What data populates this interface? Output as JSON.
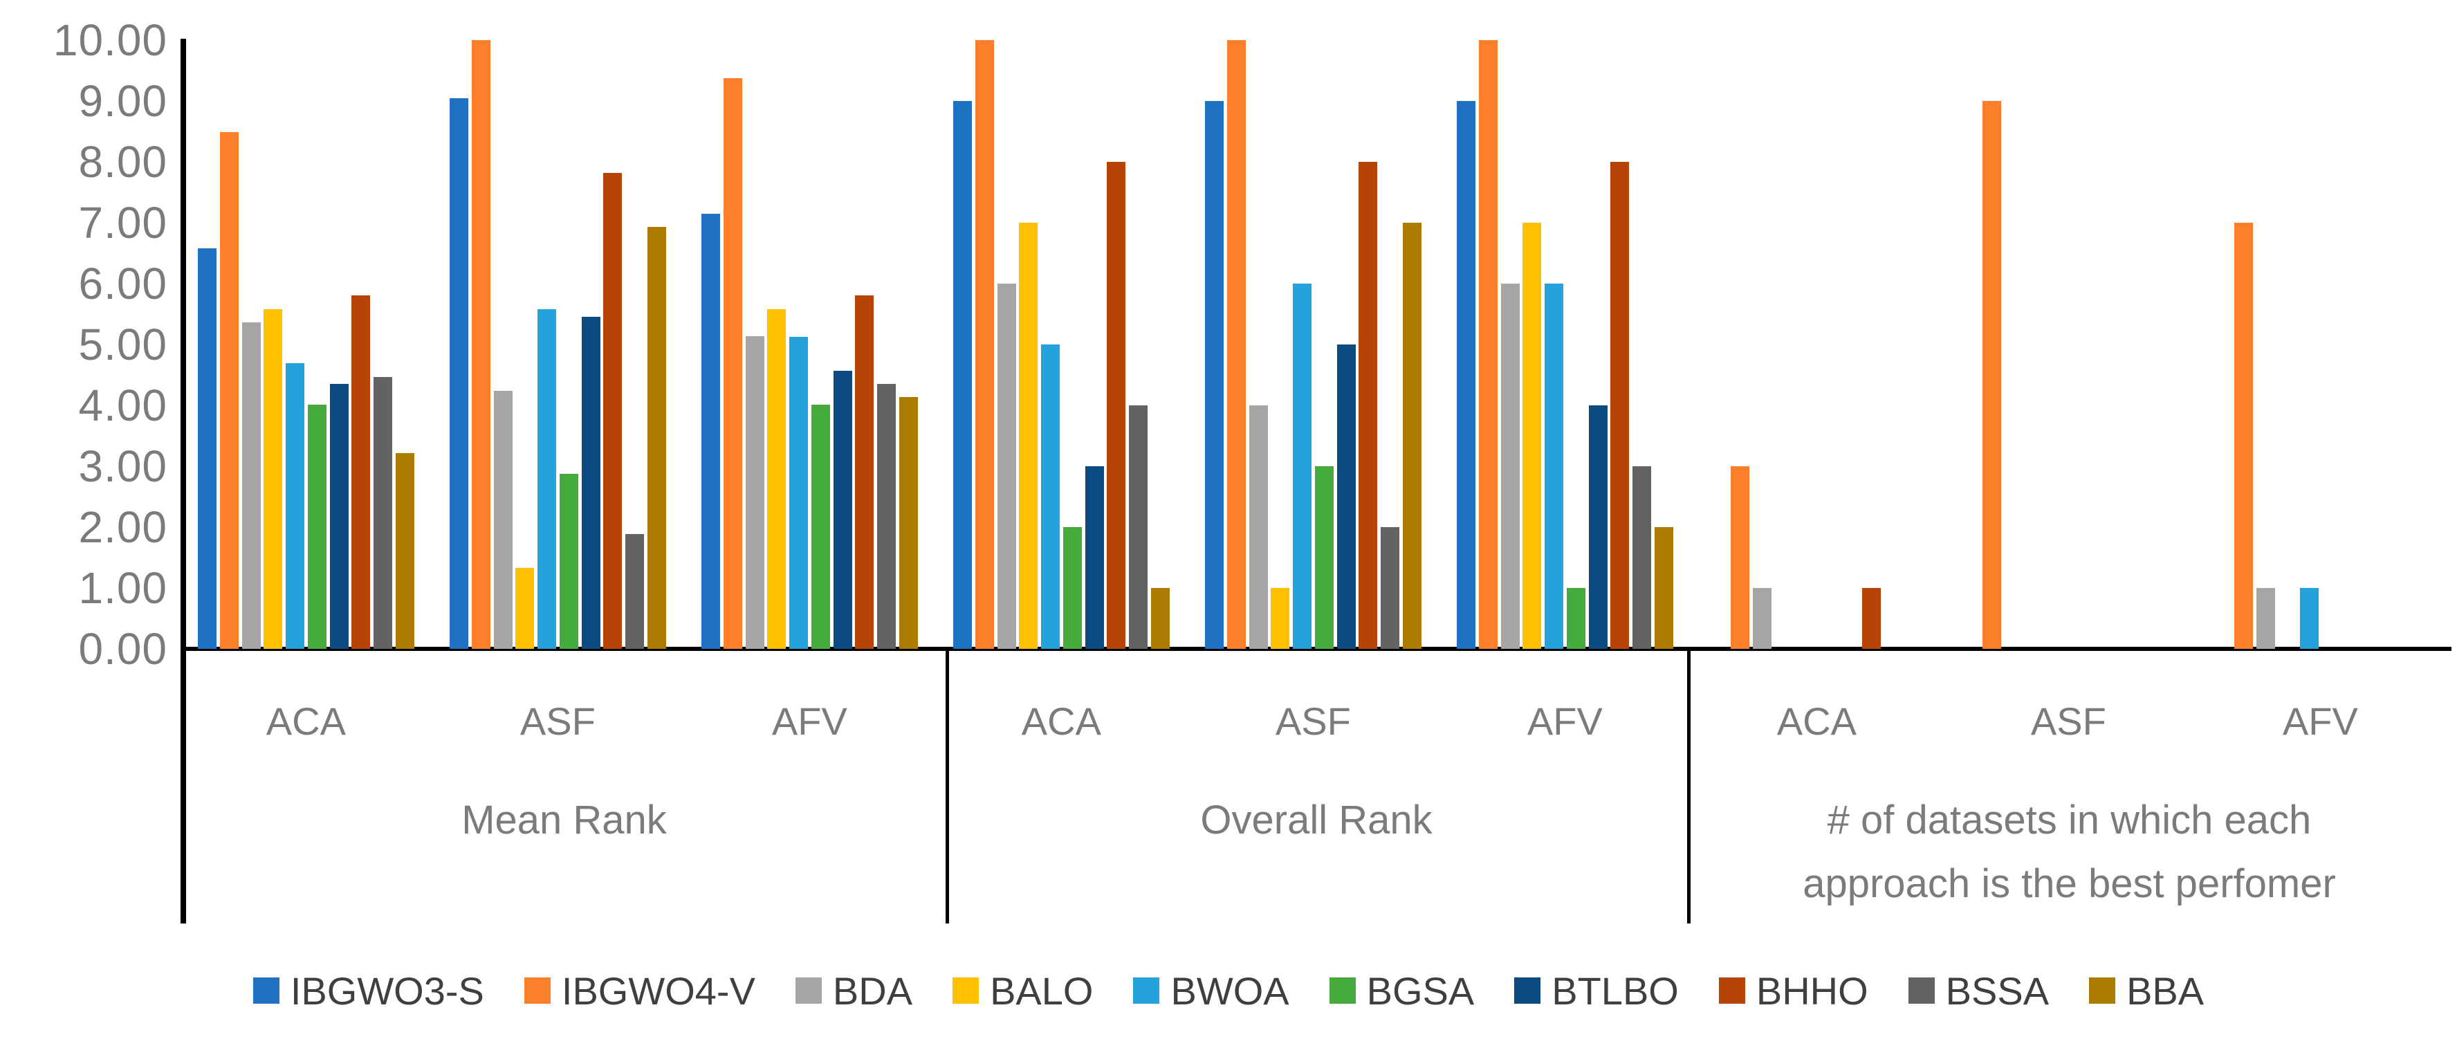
{
  "chart_data": {
    "type": "bar",
    "title": "",
    "ylabel": "",
    "xlabel": "",
    "ylim": [
      0,
      10
    ],
    "ytick_step": 1,
    "ytick_labels": [
      "0.00",
      "1.00",
      "2.00",
      "3.00",
      "4.00",
      "5.00",
      "6.00",
      "7.00",
      "8.00",
      "9.00",
      "10.00"
    ],
    "grid": false,
    "legend_position": "bottom",
    "groups": [
      {
        "caption_lines": [
          "Mean Rank"
        ],
        "subcategories": [
          "ACA",
          "ASF",
          "AFV"
        ]
      },
      {
        "caption_lines": [
          "Overall Rank"
        ],
        "subcategories": [
          "ACA",
          "ASF",
          "AFV"
        ]
      },
      {
        "caption_lines": [
          "# of datasets in which each",
          "approach is the best perfomer"
        ],
        "subcategories": [
          "ACA",
          "ASF",
          "AFV"
        ]
      }
    ],
    "cluster_order": [
      "Mean Rank | ACA",
      "Mean Rank | ASF",
      "Mean Rank | AFV",
      "Overall Rank | ACA",
      "Overall Rank | ASF",
      "Overall Rank | AFV",
      "# of datasets | ACA",
      "# of datasets | ASF",
      "# of datasets | AFV"
    ],
    "series": [
      {
        "name": "IBGWO3-S",
        "color": "#1f72c2",
        "values": [
          6.58,
          9.04,
          7.15,
          9,
          9,
          9,
          0,
          0,
          0
        ]
      },
      {
        "name": "IBGWO4-V",
        "color": "#fd7e2b",
        "values": [
          8.49,
          10.0,
          9.38,
          10,
          10,
          10,
          3,
          9,
          7
        ]
      },
      {
        "name": "BDA",
        "color": "#a6a6a6",
        "values": [
          5.36,
          4.24,
          5.14,
          6,
          4,
          6,
          1,
          0,
          1
        ]
      },
      {
        "name": "BALO",
        "color": "#ffc001",
        "values": [
          5.58,
          1.33,
          5.58,
          7,
          1,
          7,
          0,
          0,
          0
        ]
      },
      {
        "name": "BWOA",
        "color": "#23a2dc",
        "values": [
          4.69,
          5.58,
          5.13,
          5,
          6,
          6,
          0,
          0,
          1
        ]
      },
      {
        "name": "BGSA",
        "color": "#44ab3c",
        "values": [
          4.01,
          2.88,
          4.01,
          2,
          3,
          1,
          0,
          0,
          0
        ]
      },
      {
        "name": "BTLBO",
        "color": "#0b4b81",
        "values": [
          4.35,
          5.46,
          4.57,
          3,
          5,
          4,
          0,
          0,
          0
        ]
      },
      {
        "name": "BHHO",
        "color": "#b54406",
        "values": [
          5.81,
          7.82,
          5.81,
          8,
          8,
          8,
          1,
          0,
          0
        ]
      },
      {
        "name": "BSSA",
        "color": "#636363",
        "values": [
          4.47,
          1.89,
          4.35,
          4,
          2,
          3,
          0,
          0,
          0
        ]
      },
      {
        "name": "BBA",
        "color": "#ac7b02",
        "values": [
          3.22,
          6.93,
          4.14,
          1,
          7,
          2,
          0,
          0,
          0
        ]
      }
    ]
  },
  "colors": {
    "axis_line": "#000000",
    "tick_text": "#7b7b7b",
    "caption_text": "#7b7b7b",
    "legend_text": "#3f3f3f",
    "background": "#ffffff"
  }
}
